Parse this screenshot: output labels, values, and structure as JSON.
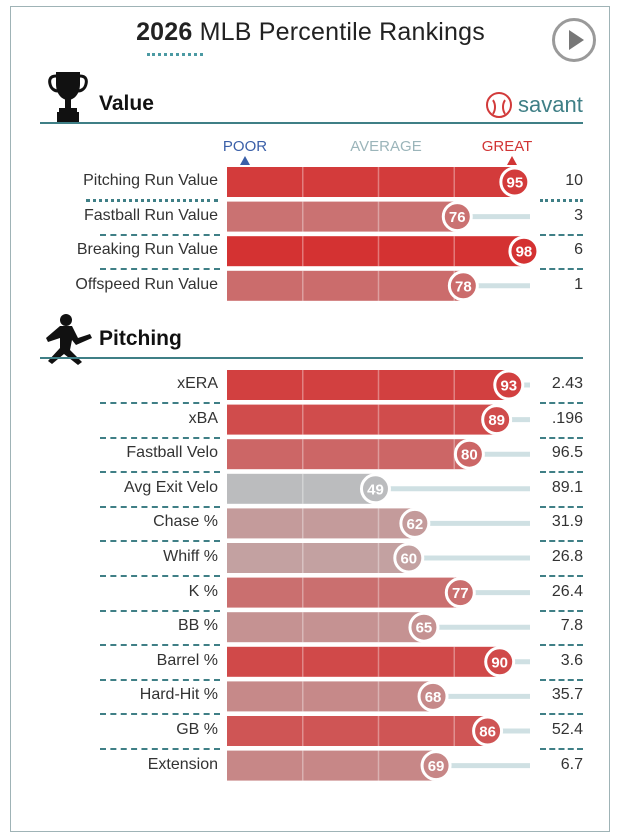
{
  "header": {
    "year": "2026",
    "title_rest": "MLB Percentile Rankings"
  },
  "brand": {
    "name": "savant",
    "color": "#3f7f86"
  },
  "icons": {
    "value_section": "trophy-icon",
    "pitching_section": "pitcher-icon",
    "play": "play-icon",
    "brand": "baseball-icon"
  },
  "scale": {
    "poor": "POOR",
    "average": "AVERAGE",
    "great": "GREAT",
    "poor_color": "#3a5fa8",
    "average_color": "#9bb5ba",
    "great_color": "#d13535"
  },
  "chart_data": {
    "type": "bar",
    "xlim": [
      0,
      100
    ],
    "sections": [
      {
        "title": "Value",
        "rows": [
          {
            "label": "Pitching Run Value",
            "percentile": 95,
            "value": "10"
          },
          {
            "label": "Fastball Run Value",
            "percentile": 76,
            "value": "3"
          },
          {
            "label": "Breaking Run Value",
            "percentile": 98,
            "value": "6"
          },
          {
            "label": "Offspeed Run Value",
            "percentile": 78,
            "value": "1"
          }
        ]
      },
      {
        "title": "Pitching",
        "rows": [
          {
            "label": "xERA",
            "percentile": 93,
            "value": "2.43"
          },
          {
            "label": "xBA",
            "percentile": 89,
            "value": ".196"
          },
          {
            "label": "Fastball Velo",
            "percentile": 80,
            "value": "96.5"
          },
          {
            "label": "Avg Exit Velo",
            "percentile": 49,
            "value": "89.1"
          },
          {
            "label": "Chase %",
            "percentile": 62,
            "value": "31.9"
          },
          {
            "label": "Whiff %",
            "percentile": 60,
            "value": "26.8"
          },
          {
            "label": "K %",
            "percentile": 77,
            "value": "26.4"
          },
          {
            "label": "BB %",
            "percentile": 65,
            "value": "7.8"
          },
          {
            "label": "Barrel %",
            "percentile": 90,
            "value": "3.6"
          },
          {
            "label": "Hard-Hit %",
            "percentile": 68,
            "value": "35.7"
          },
          {
            "label": "GB %",
            "percentile": 86,
            "value": "52.4"
          },
          {
            "label": "Extension",
            "percentile": 69,
            "value": "6.7"
          }
        ]
      }
    ]
  }
}
